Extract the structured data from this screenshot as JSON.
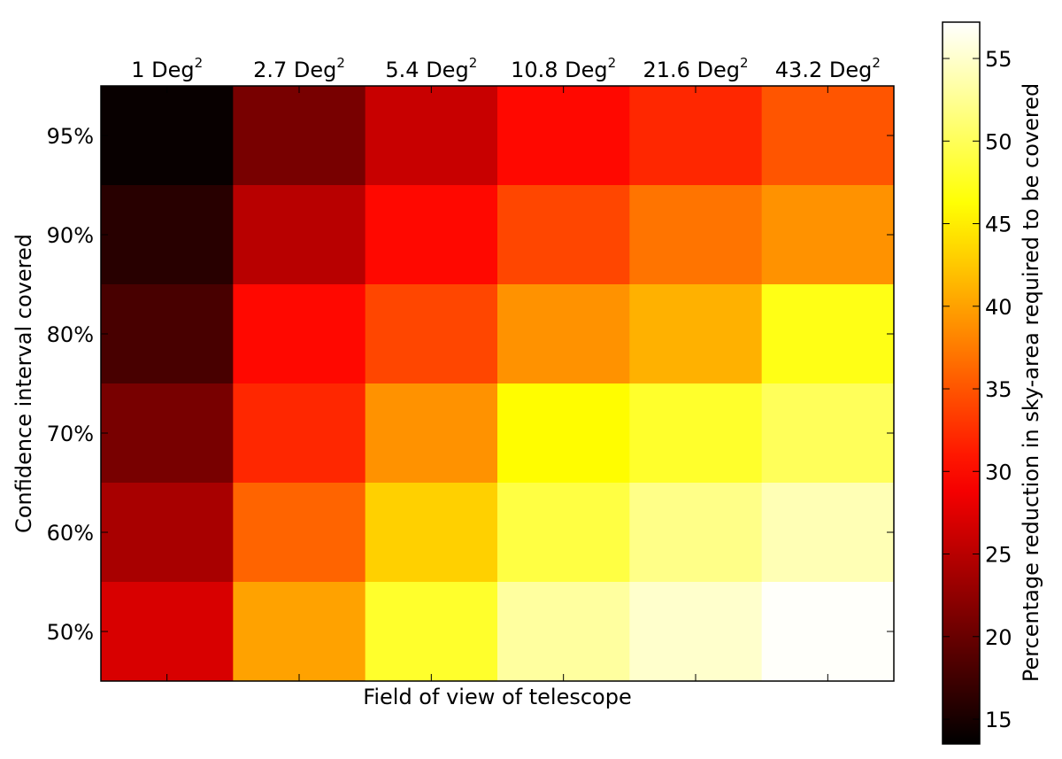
{
  "chart_data": {
    "type": "heatmap",
    "title": "",
    "xlabel": "Field of view of telescope",
    "ylabel": "Confidence interval covered",
    "x_categories": [
      {
        "base": "1 Deg",
        "sup": "2"
      },
      {
        "base": "2.7 Deg",
        "sup": "2"
      },
      {
        "base": "5.4 Deg",
        "sup": "2"
      },
      {
        "base": "10.8 Deg",
        "sup": "2"
      },
      {
        "base": "21.6 Deg",
        "sup": "2"
      },
      {
        "base": "43.2 Deg",
        "sup": "2"
      }
    ],
    "y_categories": [
      "95%",
      "90%",
      "80%",
      "70%",
      "60%",
      "50%"
    ],
    "values": [
      [
        14,
        21,
        26,
        30,
        32,
        35
      ],
      [
        16,
        25,
        30,
        34,
        37,
        39
      ],
      [
        18,
        30,
        34,
        39,
        41,
        47
      ],
      [
        21,
        32,
        39,
        46,
        48,
        50
      ],
      [
        24,
        36,
        43,
        49,
        52,
        54
      ],
      [
        27,
        40,
        48,
        53,
        55,
        57
      ]
    ],
    "colorscale": "hot",
    "colorbar": {
      "label": "Percentage reduction in sky-area required to be covered",
      "min": 13.5,
      "max": 57.2,
      "ticks": [
        15,
        20,
        25,
        30,
        35,
        40,
        45,
        50,
        55
      ]
    }
  }
}
